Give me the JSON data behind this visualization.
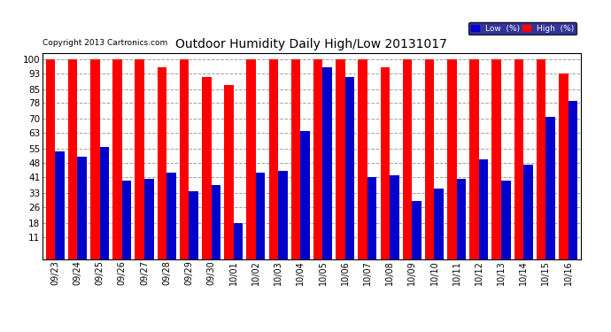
{
  "title": "Outdoor Humidity Daily High/Low 20131017",
  "copyright": "Copyright 2013 Cartronics.com",
  "background_color": "#ffffff",
  "plot_bg_color": "#ffffff",
  "categories": [
    "09/23",
    "09/24",
    "09/25",
    "09/26",
    "09/27",
    "09/28",
    "09/29",
    "09/30",
    "10/01",
    "10/02",
    "10/03",
    "10/04",
    "10/05",
    "10/06",
    "10/07",
    "10/08",
    "10/09",
    "10/10",
    "10/11",
    "10/12",
    "10/13",
    "10/14",
    "10/15",
    "10/16"
  ],
  "high_values": [
    100,
    100,
    100,
    100,
    100,
    96,
    100,
    91,
    87,
    100,
    100,
    100,
    100,
    100,
    100,
    96,
    100,
    100,
    100,
    100,
    100,
    100,
    100,
    93
  ],
  "low_values": [
    54,
    51,
    56,
    39,
    40,
    43,
    34,
    37,
    18,
    43,
    44,
    64,
    96,
    91,
    41,
    42,
    29,
    35,
    40,
    50,
    39,
    47,
    71,
    79
  ],
  "high_color": "#ff0000",
  "low_color": "#0000cc",
  "grid_color": "#888888",
  "yticks": [
    11,
    18,
    26,
    33,
    41,
    48,
    55,
    63,
    70,
    78,
    85,
    93,
    100
  ],
  "ylim": [
    0,
    103
  ],
  "bar_width": 0.42,
  "legend_labels": [
    "Low  (%)",
    "High  (%)"
  ]
}
